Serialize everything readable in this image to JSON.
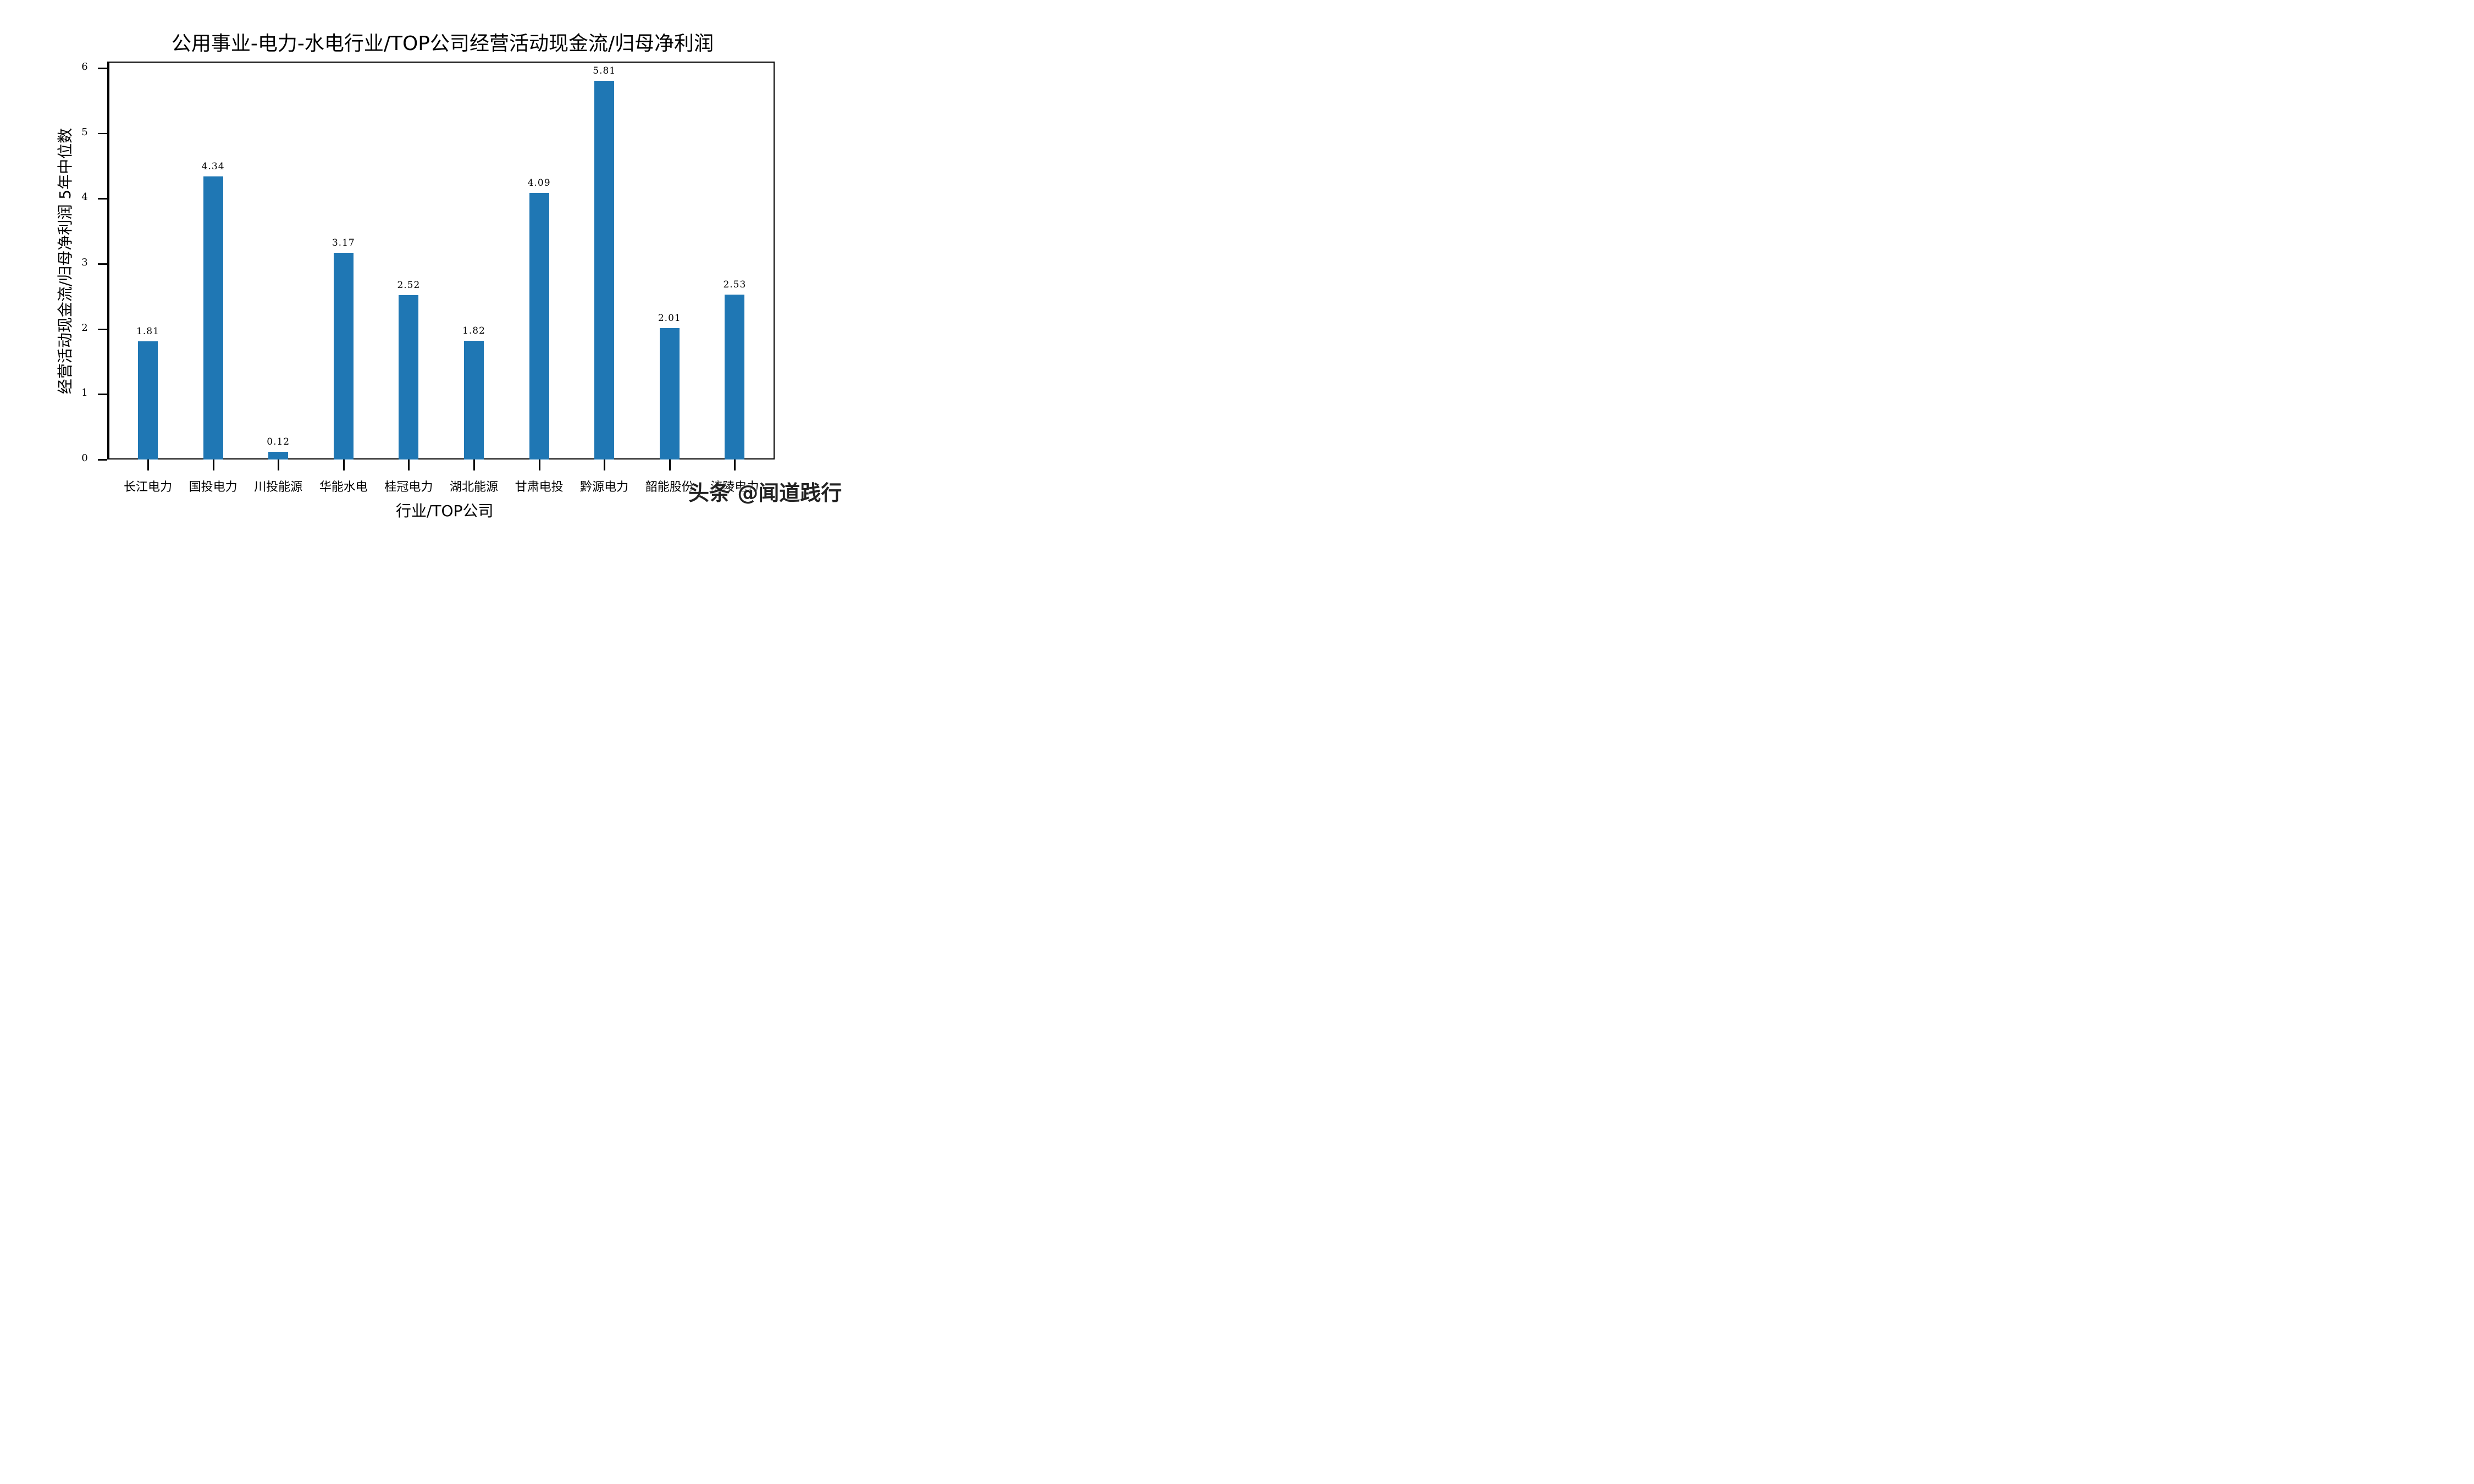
{
  "chart_data": {
    "type": "bar",
    "title": "公用事业-电力-水电行业/TOP公司经营活动现金流/归母净利润",
    "xlabel": "行业/TOP公司",
    "ylabel": "经营活动现金流/归母净利润 5年中位数",
    "categories": [
      "长江电力",
      "国投电力",
      "川投能源",
      "华能水电",
      "桂冠电力",
      "湖北能源",
      "甘肃电投",
      "黔源电力",
      "韶能股份",
      "涪陵电力"
    ],
    "values": [
      1.81,
      4.34,
      0.12,
      3.17,
      2.52,
      1.82,
      4.09,
      5.81,
      2.01,
      2.53
    ],
    "value_labels": [
      "1.81",
      "4.34",
      "0.12",
      "3.17",
      "2.52",
      "1.82",
      "4.09",
      "5.81",
      "2.01",
      "2.53"
    ],
    "ylim": [
      0,
      6.1
    ],
    "yticks": [
      "0",
      "1",
      "2",
      "3",
      "4",
      "5",
      "6"
    ],
    "grid": false,
    "legend": null,
    "bar_color": "#1f77b4"
  },
  "watermark": "头条 @闻道践行"
}
